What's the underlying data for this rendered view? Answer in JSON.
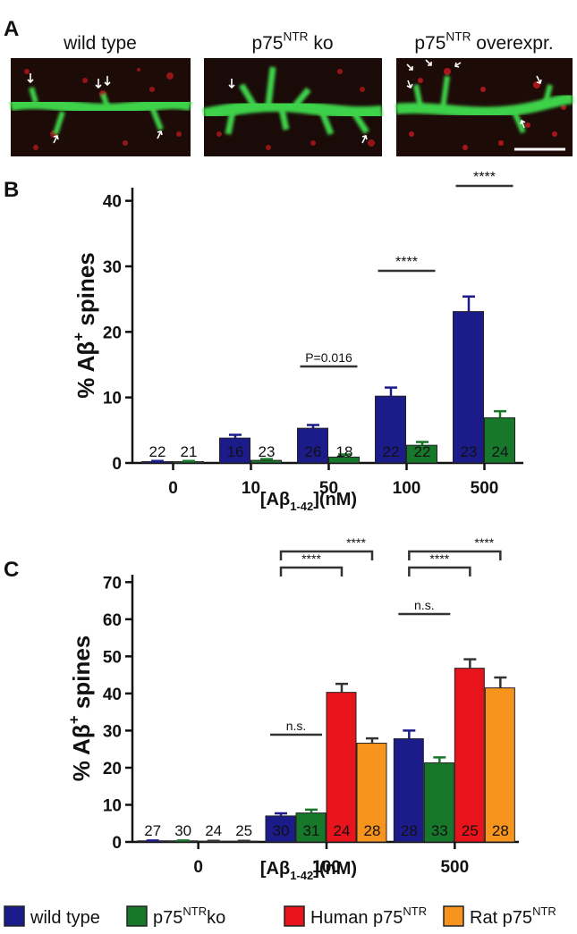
{
  "panel_a": {
    "label": "A",
    "images": [
      [
        "wild type"
      ],
      [
        "p75",
        "NTR",
        " ko"
      ],
      [
        "p75",
        "NTR",
        " overexpr."
      ]
    ]
  },
  "chart_data": [
    {
      "panel_label": "B",
      "type": "bar",
      "ylabel": [
        "% Aβ",
        "+",
        " spines"
      ],
      "xlabel": [
        "[Aβ",
        "1-42",
        "](nM)"
      ],
      "categories": [
        "0",
        "10",
        "50",
        "100",
        "500"
      ],
      "series": [
        {
          "name": [
            "wild type"
          ],
          "color": "#1b1b8a",
          "values": [
            0.2,
            3.8,
            5.3,
            10.2,
            23.1
          ],
          "errors": [
            0.1,
            0.5,
            0.5,
            1.3,
            2.3
          ],
          "n": [
            22,
            16,
            26,
            22,
            23
          ]
        },
        {
          "name": [
            "p75",
            "NTR",
            "ko"
          ],
          "color": "#17782b",
          "values": [
            0.2,
            0.4,
            0.9,
            2.7,
            6.9
          ],
          "errors": [
            0.1,
            0.2,
            0.4,
            0.5,
            1.0
          ],
          "n": [
            21,
            23,
            18,
            22,
            24
          ]
        }
      ],
      "ylim": [
        0,
        42
      ],
      "yticks": [
        0,
        10,
        20,
        30,
        40
      ],
      "annotations": [
        null,
        null,
        "P=0.016",
        "****",
        "****"
      ]
    },
    {
      "panel_label": "C",
      "type": "bar",
      "ylabel": [
        "% Aβ",
        "+",
        " spines"
      ],
      "xlabel": [
        "[Aβ",
        "1-42",
        "](nM)"
      ],
      "categories": [
        "0",
        "100",
        "500"
      ],
      "series": [
        {
          "name": [
            "wild type"
          ],
          "color": "#1b1b8a",
          "values": [
            0.3,
            7.0,
            27.8
          ],
          "errors": [
            0.1,
            0.7,
            2.2
          ],
          "n": [
            27,
            30,
            28
          ]
        },
        {
          "name": [
            "p75",
            "NTR",
            "ko"
          ],
          "color": "#17782b",
          "values": [
            0.3,
            7.8,
            21.3
          ],
          "errors": [
            0.1,
            0.9,
            1.5
          ],
          "n": [
            30,
            31,
            33
          ]
        },
        {
          "name": [
            "Human p75",
            "NTR"
          ],
          "color": "#e8141b",
          "values": [
            0.2,
            40.3,
            46.8
          ],
          "errors": [
            0.1,
            2.3,
            2.4
          ],
          "n": [
            24,
            24,
            25
          ]
        },
        {
          "name": [
            "Rat p75",
            "NTR"
          ],
          "color": "#f7941d",
          "values": [
            0.2,
            26.6,
            41.5
          ],
          "errors": [
            0.1,
            1.3,
            2.8
          ],
          "n": [
            25,
            28,
            28
          ]
        }
      ],
      "ylim": [
        0,
        72
      ],
      "yticks": [
        0,
        10,
        20,
        30,
        40,
        50,
        60,
        70
      ],
      "annotations": [
        null,
        [
          "n.s.",
          "****",
          "****"
        ],
        [
          "n.s.",
          "****",
          "****"
        ]
      ]
    }
  ]
}
